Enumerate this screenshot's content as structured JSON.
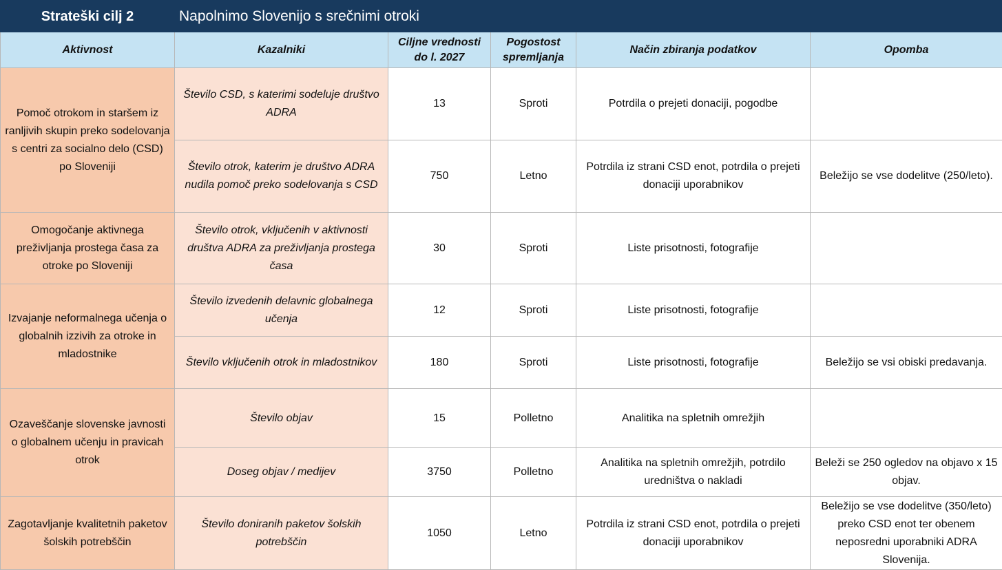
{
  "header": {
    "title": "Strateški cilj 2",
    "subtitle": "Napolnimo Slovenijo s srečnimi otroki"
  },
  "columns": [
    "Aktivnost",
    "Kazalniki",
    "Ciljne vrednosti do l. 2027",
    "Pogostost spremljanja",
    "Način zbiranja podatkov",
    "Opomba"
  ],
  "colors": {
    "title_bg": "#183a5e",
    "header_bg": "#c5e3f3",
    "activity_bg": "#f7c9ac",
    "indicator_bg": "#fbe1d4"
  },
  "activities": [
    {
      "name": "Pomoč otrokom in staršem iz ranljivih skupin preko sodelovanja s centri za socialno delo (CSD) po Sloveniji",
      "rows": [
        {
          "kazalnik": "Število CSD, s katerimi sodeluje društvo ADRA",
          "vrednost": "13",
          "pogostost": "Sproti",
          "nacin": "Potrdila o prejeti donaciji, pogodbe",
          "opomba": ""
        },
        {
          "kazalnik": "Število otrok, katerim je društvo ADRA nudila pomoč preko sodelovanja s CSD",
          "vrednost": "750",
          "pogostost": "Letno",
          "nacin": "Potrdila iz strani CSD enot, potrdila o prejeti donaciji uporabnikov",
          "opomba": "Beležijo se vse dodelitve (250/leto)."
        }
      ]
    },
    {
      "name": "Omogočanje aktivnega preživljanja prostega časa za otroke po Sloveniji",
      "rows": [
        {
          "kazalnik": "Število otrok, vključenih v  aktivnosti društva ADRA za preživljanja prostega časa",
          "vrednost": "30",
          "pogostost": "Sproti",
          "nacin": "Liste prisotnosti, fotografije",
          "opomba": ""
        }
      ]
    },
    {
      "name": "Izvajanje neformalnega učenja o globalnih izzivih za otroke in mladostnike",
      "rows": [
        {
          "kazalnik": "Število izvedenih delavnic globalnega učenja",
          "vrednost": "12",
          "pogostost": "Sproti",
          "nacin": "Liste prisotnosti, fotografije",
          "opomba": ""
        },
        {
          "kazalnik": "Število vključenih otrok in mladostnikov",
          "vrednost": "180",
          "pogostost": "Sproti",
          "nacin": "Liste prisotnosti, fotografije",
          "opomba": "Beležijo se vsi obiski predavanja."
        }
      ]
    },
    {
      "name": "Ozaveščanje slovenske javnosti o globalnem učenju in pravicah otrok",
      "rows": [
        {
          "kazalnik": "Število objav",
          "vrednost": "15",
          "pogostost": "Polletno",
          "nacin": "Analitika na spletnih omrežjih",
          "opomba": ""
        },
        {
          "kazalnik": "Doseg objav / medijev",
          "vrednost": "3750",
          "pogostost": "Polletno",
          "nacin": "Analitika na spletnih omrežjih, potrdilo uredništva o nakladi",
          "opomba": "Beleži se 250 ogledov na objavo x 15 objav."
        }
      ]
    },
    {
      "name": "Zagotavljanje kvalitetnih paketov šolskih potrebščin",
      "rows": [
        {
          "kazalnik": "Število doniranih paketov šolskih potrebščin",
          "vrednost": "1050",
          "pogostost": "Letno",
          "nacin": "Potrdila iz strani CSD enot, potrdila o prejeti donaciji uporabnikov",
          "opomba": "Beležijo se vse dodelitve (350/leto) preko CSD enot ter obenem neposredni uporabniki ADRA Slovenija."
        }
      ]
    }
  ]
}
